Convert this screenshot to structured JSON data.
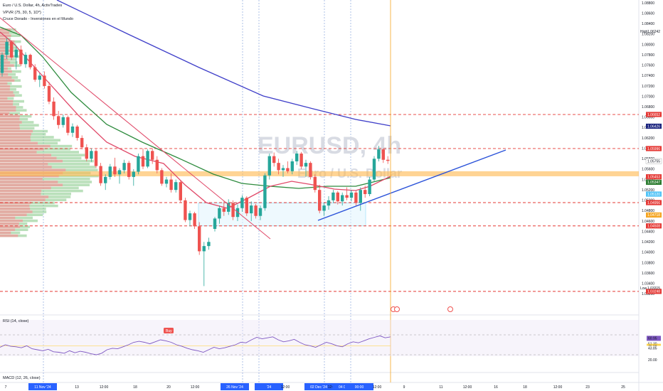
{
  "header": {
    "title": "Euro / U.S. Dollar, 4h, ActivTrades",
    "indicator1": "VPVR (75, 30, 5, 1D*)",
    "indicator2": "Cruce Dorado - Inversiones en el Mundo"
  },
  "watermark": {
    "symbol": "EURUSD, 4h",
    "name": "Euro / U.S. Dollar"
  },
  "rsi_pane": {
    "title": "RSI (14, close)",
    "value": "60.95",
    "upper": "51.30",
    "mid": "46.08",
    "lower": "43.85",
    "tick": "20.00"
  },
  "macd_pane": {
    "title": "MACD (12, 26, close)"
  },
  "high_label": {
    "text": "High",
    "value": "1.06242"
  },
  "low_label": {
    "text": "Low",
    "value": "1.03315"
  },
  "annotation": "Buy",
  "colors": {
    "bull": "#26a69a",
    "bear": "#ef5350",
    "ema_long": "#3f3fc9",
    "ema_mid": "#2e8b3e",
    "ema_fast": "#e04868",
    "trendline": "#2a52d9",
    "level": "#e53935",
    "zone": "#ffb74d",
    "rsi": "#7e57c2",
    "cursor": "#f5a623",
    "box": "#4fc3f7"
  },
  "chart_data": {
    "type": "candlestick",
    "symbol": "EURUSD",
    "timeframe": "4h",
    "y_axis": {
      "min": 1.03,
      "max": 1.088,
      "scale": "linear",
      "ticks": [
        "1.08800",
        "1.08600",
        "1.08400",
        "1.08200",
        "1.08000",
        "1.07800",
        "1.07600",
        "1.07400",
        "1.07200",
        "1.07000",
        "1.06800",
        "1.06600",
        "1.06400",
        "1.06200",
        "1.06000",
        "1.05800",
        "1.05600",
        "1.05400",
        "1.05200",
        "1.05000",
        "1.04800",
        "1.04600",
        "1.04400",
        "1.04200",
        "1.04000",
        "1.03800",
        "1.03600",
        "1.03400",
        "1.03200"
      ]
    },
    "x_axis": {
      "ticks": [
        "7",
        "11 Nov '24",
        "13",
        "12:00",
        "18",
        "20",
        "12:00",
        "25",
        "26 Nov '24",
        "00:00",
        "'24",
        "12:00",
        "02 Dec '24",
        "12:00",
        "04 Dec '24",
        "00:00",
        "12:00",
        "9",
        "11",
        "12:00",
        "16",
        "18",
        "12:00",
        "23",
        "25"
      ]
    },
    "horizontal_levels": [
      1.06652,
      1.05996,
      1.04956,
      1.04508,
      1.03248
    ],
    "support_zone": [
      1.05463,
      1.0556
    ],
    "price_labels": [
      {
        "value": "1.06652",
        "color": "#e53935"
      },
      {
        "value": "1.06426",
        "color": "#1a237e"
      },
      {
        "value": "1.05996",
        "color": "#e53935"
      },
      {
        "value": "1.05755",
        "color": "#ffffff"
      },
      {
        "value": "1.05453",
        "color": "#e53935"
      },
      {
        "value": "1.05347",
        "color": "#2e7d32"
      },
      {
        "value": "1.05120",
        "color": "#4fc3f7"
      },
      {
        "value": "1.04956",
        "color": "#e53935"
      },
      {
        "value": "1.04718",
        "color": "#f5a623"
      },
      {
        "value": "1.04508",
        "color": "#e53935"
      },
      {
        "value": "1.03248",
        "color": "#e53935"
      }
    ],
    "candles": [
      {
        "o": 1.0745,
        "h": 1.0785,
        "l": 1.0738,
        "c": 1.078
      },
      {
        "o": 1.078,
        "h": 1.0812,
        "l": 1.0772,
        "c": 1.0805
      },
      {
        "o": 1.0805,
        "h": 1.0808,
        "l": 1.077,
        "c": 1.0775
      },
      {
        "o": 1.0775,
        "h": 1.0798,
        "l": 1.0752,
        "c": 1.079
      },
      {
        "o": 1.079,
        "h": 1.0798,
        "l": 1.0758,
        "c": 1.0762
      },
      {
        "o": 1.0762,
        "h": 1.0785,
        "l": 1.0755,
        "c": 1.078
      },
      {
        "o": 1.078,
        "h": 1.0782,
        "l": 1.0752,
        "c": 1.0756
      },
      {
        "o": 1.0756,
        "h": 1.0762,
        "l": 1.0728,
        "c": 1.0732
      },
      {
        "o": 1.0732,
        "h": 1.0745,
        "l": 1.0718,
        "c": 1.074
      },
      {
        "o": 1.074,
        "h": 1.0748,
        "l": 1.0715,
        "c": 1.072
      },
      {
        "o": 1.072,
        "h": 1.0728,
        "l": 1.0685,
        "c": 1.069
      },
      {
        "o": 1.069,
        "h": 1.0698,
        "l": 1.0655,
        "c": 1.0662
      },
      {
        "o": 1.0662,
        "h": 1.0672,
        "l": 1.0638,
        "c": 1.0645
      },
      {
        "o": 1.0645,
        "h": 1.0665,
        "l": 1.064,
        "c": 1.066
      },
      {
        "o": 1.066,
        "h": 1.0663,
        "l": 1.0625,
        "c": 1.063
      },
      {
        "o": 1.063,
        "h": 1.0648,
        "l": 1.0622,
        "c": 1.0642
      },
      {
        "o": 1.0642,
        "h": 1.0645,
        "l": 1.0615,
        "c": 1.062
      },
      {
        "o": 1.062,
        "h": 1.0625,
        "l": 1.0598,
        "c": 1.0602
      },
      {
        "o": 1.0602,
        "h": 1.0608,
        "l": 1.0575,
        "c": 1.058
      },
      {
        "o": 1.058,
        "h": 1.06,
        "l": 1.0574,
        "c": 1.0595
      },
      {
        "o": 1.0595,
        "h": 1.0598,
        "l": 1.0562,
        "c": 1.0566
      },
      {
        "o": 1.0566,
        "h": 1.0572,
        "l": 1.0528,
        "c": 1.0533
      },
      {
        "o": 1.0533,
        "h": 1.055,
        "l": 1.052,
        "c": 1.0545
      },
      {
        "o": 1.0545,
        "h": 1.057,
        "l": 1.054,
        "c": 1.0565
      },
      {
        "o": 1.0565,
        "h": 1.0582,
        "l": 1.0545,
        "c": 1.055
      },
      {
        "o": 1.055,
        "h": 1.0562,
        "l": 1.0532,
        "c": 1.0558
      },
      {
        "o": 1.0558,
        "h": 1.0578,
        "l": 1.0552,
        "c": 1.0572
      },
      {
        "o": 1.0572,
        "h": 1.0576,
        "l": 1.054,
        "c": 1.0545
      },
      {
        "o": 1.0545,
        "h": 1.056,
        "l": 1.0528,
        "c": 1.0555
      },
      {
        "o": 1.0555,
        "h": 1.059,
        "l": 1.055,
        "c": 1.0585
      },
      {
        "o": 1.0585,
        "h": 1.06,
        "l": 1.056,
        "c": 1.0565
      },
      {
        "o": 1.0565,
        "h": 1.0598,
        "l": 1.0562,
        "c": 1.0595
      },
      {
        "o": 1.0595,
        "h": 1.06,
        "l": 1.057,
        "c": 1.0578
      },
      {
        "o": 1.0578,
        "h": 1.0585,
        "l": 1.0552,
        "c": 1.0558
      },
      {
        "o": 1.0558,
        "h": 1.0562,
        "l": 1.0528,
        "c": 1.0532
      },
      {
        "o": 1.0532,
        "h": 1.0545,
        "l": 1.0525,
        "c": 1.054
      },
      {
        "o": 1.054,
        "h": 1.0552,
        "l": 1.0515,
        "c": 1.052
      },
      {
        "o": 1.052,
        "h": 1.054,
        "l": 1.0515,
        "c": 1.0535
      },
      {
        "o": 1.0535,
        "h": 1.0538,
        "l": 1.0495,
        "c": 1.05
      },
      {
        "o": 1.05,
        "h": 1.0505,
        "l": 1.0458,
        "c": 1.0462
      },
      {
        "o": 1.0462,
        "h": 1.048,
        "l": 1.045,
        "c": 1.0475
      },
      {
        "o": 1.0475,
        "h": 1.0478,
        "l": 1.0445,
        "c": 1.045
      },
      {
        "o": 1.045,
        "h": 1.0458,
        "l": 1.0395,
        "c": 1.0402
      },
      {
        "o": 1.0402,
        "h": 1.042,
        "l": 1.0335,
        "c": 1.0412
      },
      {
        "o": 1.0412,
        "h": 1.0428,
        "l": 1.0405,
        "c": 1.042
      },
      {
        "o": 1.0445,
        "h": 1.0468,
        "l": 1.044,
        "c": 1.0465
      },
      {
        "o": 1.0465,
        "h": 1.049,
        "l": 1.0455,
        "c": 1.0485
      },
      {
        "o": 1.0485,
        "h": 1.0498,
        "l": 1.047,
        "c": 1.0478
      },
      {
        "o": 1.0478,
        "h": 1.0502,
        "l": 1.0472,
        "c": 1.0495
      },
      {
        "o": 1.0495,
        "h": 1.05,
        "l": 1.0462,
        "c": 1.0468
      },
      {
        "o": 1.0468,
        "h": 1.0492,
        "l": 1.046,
        "c": 1.0485
      },
      {
        "o": 1.0485,
        "h": 1.051,
        "l": 1.0478,
        "c": 1.0505
      },
      {
        "o": 1.0505,
        "h": 1.0508,
        "l": 1.047,
        "c": 1.0475
      },
      {
        "o": 1.0475,
        "h": 1.0498,
        "l": 1.046,
        "c": 1.049
      },
      {
        "o": 1.049,
        "h": 1.0493,
        "l": 1.0465,
        "c": 1.047
      },
      {
        "o": 1.047,
        "h": 1.049,
        "l": 1.0462,
        "c": 1.0485
      },
      {
        "o": 1.0485,
        "h": 1.0552,
        "l": 1.048,
        "c": 1.0548
      },
      {
        "o": 1.0548,
        "h": 1.059,
        "l": 1.054,
        "c": 1.0585
      },
      {
        "o": 1.0585,
        "h": 1.0592,
        "l": 1.0565,
        "c": 1.0572
      },
      {
        "o": 1.0572,
        "h": 1.058,
        "l": 1.055,
        "c": 1.0558
      },
      {
        "o": 1.0558,
        "h": 1.0568,
        "l": 1.0545,
        "c": 1.0562
      },
      {
        "o": 1.0562,
        "h": 1.0575,
        "l": 1.0552,
        "c": 1.0556
      },
      {
        "o": 1.0556,
        "h": 1.058,
        "l": 1.055,
        "c": 1.0575
      },
      {
        "o": 1.0575,
        "h": 1.0595,
        "l": 1.0568,
        "c": 1.059
      },
      {
        "o": 1.059,
        "h": 1.0593,
        "l": 1.056,
        "c": 1.0565
      },
      {
        "o": 1.0565,
        "h": 1.0578,
        "l": 1.0545,
        "c": 1.0572
      },
      {
        "o": 1.0572,
        "h": 1.0575,
        "l": 1.054,
        "c": 1.0545
      },
      {
        "o": 1.0545,
        "h": 1.055,
        "l": 1.0515,
        "c": 1.052
      },
      {
        "o": 1.052,
        "h": 1.053,
        "l": 1.0475,
        "c": 1.048
      },
      {
        "o": 1.048,
        "h": 1.0495,
        "l": 1.047,
        "c": 1.049
      },
      {
        "o": 1.049,
        "h": 1.0508,
        "l": 1.0482,
        "c": 1.05
      },
      {
        "o": 1.05,
        "h": 1.052,
        "l": 1.0495,
        "c": 1.0515
      },
      {
        "o": 1.0515,
        "h": 1.0518,
        "l": 1.0492,
        "c": 1.0498
      },
      {
        "o": 1.0498,
        "h": 1.0515,
        "l": 1.049,
        "c": 1.051
      },
      {
        "o": 1.051,
        "h": 1.0525,
        "l": 1.05,
        "c": 1.0505
      },
      {
        "o": 1.0505,
        "h": 1.052,
        "l": 1.0498,
        "c": 1.0515
      },
      {
        "o": 1.0515,
        "h": 1.0518,
        "l": 1.049,
        "c": 1.0495
      },
      {
        "o": 1.0495,
        "h": 1.0525,
        "l": 1.048,
        "c": 1.052
      },
      {
        "o": 1.052,
        "h": 1.0528,
        "l": 1.0505,
        "c": 1.0512
      },
      {
        "o": 1.0512,
        "h": 1.0545,
        "l": 1.0508,
        "c": 1.054
      },
      {
        "o": 1.054,
        "h": 1.0585,
        "l": 1.0535,
        "c": 1.058
      },
      {
        "o": 1.058,
        "h": 1.0605,
        "l": 1.0575,
        "c": 1.0598
      },
      {
        "o": 1.0598,
        "h": 1.06,
        "l": 1.0572,
        "c": 1.0578
      },
      {
        "o": 1.0578,
        "h": 1.0585,
        "l": 1.057,
        "c": 1.0576
      }
    ]
  }
}
